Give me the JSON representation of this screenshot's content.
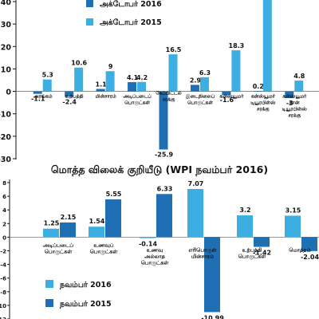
{
  "colors": {
    "dark": "#1f6fb4",
    "light": "#3daee2",
    "axis": "#111111",
    "zero": "#777777"
  },
  "chart_data": [
    {
      "type": "bar",
      "title": "",
      "ylim": [
        -30,
        40
      ],
      "yticks": [
        -30,
        -20,
        -10,
        0,
        10,
        20,
        30,
        40
      ],
      "categories": [
        "அரங்கம்",
        "உற்பத்தி",
        "மின்சாரம்",
        "அடிப்படைப் பொருட்கள்",
        "கேப்பிட்டல் சரக்கு",
        "இடைநிலைப் பொருட்கள்",
        "கன்ஸ்யூமர்",
        "கன்ஸ்யூமர் டியூரபிள்ஸ் சரக்கு",
        "கன்ஸ்யூமர் நான் டியூரபிள்ஸ் சரக்கு"
      ],
      "series": [
        {
          "name": "அக்டோபர் 2016",
          "color": "#1f6fb4",
          "values": [
            -1.1,
            -2.4,
            1.1,
            4.1,
            -25.9,
            2.9,
            -1.6,
            0.2,
            -3
          ]
        },
        {
          "name": "அக்டோபர் 2015",
          "color": "#3daee2",
          "values": [
            5.3,
            10.6,
            9,
            4.2,
            16.5,
            6.3,
            18.3,
            44,
            4.8
          ]
        }
      ],
      "data_labels": [
        [
          "-1.1",
          "-2.4",
          "1.1",
          "4.1",
          "-25.9",
          "2.9",
          "-1.6",
          "0.2",
          "-3"
        ],
        [
          "5.3",
          "10.6",
          "9",
          "4.2",
          "16.5",
          "6.3",
          "18.3",
          "",
          "4.8"
        ]
      ],
      "legend_position": "top-center"
    },
    {
      "type": "bar",
      "title": "மொத்த விலைக் குறியீடு (WPI நவம்பர் 2016)",
      "ylim": [
        -12,
        8
      ],
      "yticks": [
        -12,
        -10,
        -8,
        -6,
        -4,
        -2,
        0,
        2,
        4,
        6,
        8
      ],
      "categories": [
        "அடிப்படைப் பொருட்கள்",
        "உணவுப் பொருட்கள்",
        "உணவு அல்லாத பொருட்கள்",
        "எரிபொருள் மின்சாரம்",
        "உற்பத்தி பொருட்கள்",
        "மொத்தம்"
      ],
      "series": [
        {
          "name": "நவம்பர் 2016",
          "color": "#3daee2",
          "values": [
            1.25,
            1.54,
            -0.14,
            7.07,
            3.2,
            3.15
          ]
        },
        {
          "name": "நவம்பர் 2015",
          "color": "#1f6fb4",
          "values": [
            2.15,
            5.55,
            6.33,
            -10.99,
            -1.42,
            -2.04
          ]
        }
      ],
      "data_labels": [
        [
          "1.25",
          "1.54",
          "-0.14",
          "7.07",
          "3.2",
          "3.15"
        ],
        [
          "2.15",
          "5.55",
          "6.33",
          "-10.99",
          "-1.42",
          "-2.04"
        ]
      ],
      "legend_position": "bottom-left"
    }
  ]
}
